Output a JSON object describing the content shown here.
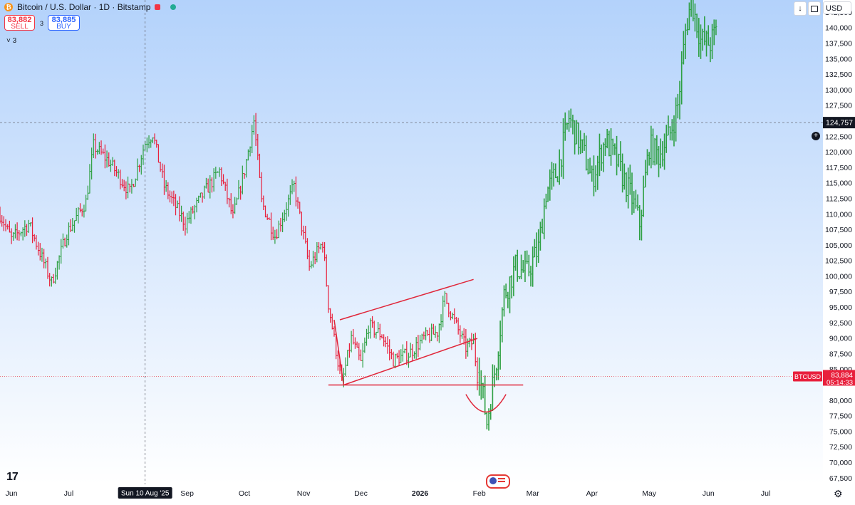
{
  "header": {
    "title": "Bitcoin / U.S. Dollar · 1D · Bitstamp",
    "coin_symbol": "₿",
    "sell_price": "83,882",
    "sell_label": "SELL",
    "buy_price": "83,885",
    "buy_label": "BUY",
    "spread": "3",
    "indicators_count": "3"
  },
  "top_right": {
    "currency": "USD",
    "arrow_glyph": "↓"
  },
  "crosshair": {
    "price_label": "124,757",
    "date_label": "Sun 10 Aug '25"
  },
  "last_price": {
    "symbol": "BTCUSD",
    "price": "83,884",
    "countdown": "05:14:33"
  },
  "logo": "17",
  "colors": {
    "up": "#2ea043",
    "down": "#e8203c",
    "pattern": "#e0263a",
    "bg_top": "#b3d2fb",
    "bg_bottom": "#ffffff"
  },
  "chart_data": {
    "type": "ohlc",
    "series": [
      {
        "name": "BTCUSD",
        "interval": "1D"
      }
    ],
    "yaxis": {
      "ticks": [
        67500,
        70000,
        72500,
        75000,
        77500,
        80000,
        82500,
        85000,
        87500,
        90000,
        92500,
        95000,
        97500,
        100000,
        102500,
        105000,
        107500,
        110000,
        112500,
        115000,
        117500,
        120000,
        122500,
        125000,
        127500,
        130000,
        132500,
        135000,
        137500,
        140000,
        142500
      ],
      "tick_labels": [
        "67,500",
        "70,000",
        "72,500",
        "75,000",
        "77,500",
        "80,000",
        "",
        "85,000",
        "87,500",
        "90,000",
        "92,500",
        "95,000",
        "97,500",
        "100,000",
        "102,500",
        "105,000",
        "107,500",
        "110,000",
        "112,500",
        "115,000",
        "117,500",
        "120,000",
        "122,500",
        "",
        "127,500",
        "130,000",
        "132,500",
        "135,000",
        "137,500",
        "140,000",
        "142,500"
      ],
      "range": [
        66500,
        144500
      ]
    },
    "xaxis": {
      "labels": [
        {
          "text": "Jun",
          "date": "2025-06-01"
        },
        {
          "text": "Jul",
          "date": "2025-07-01"
        },
        {
          "text": "Sep",
          "date": "2025-09-01"
        },
        {
          "text": "Oct",
          "date": "2025-10-01"
        },
        {
          "text": "Nov",
          "date": "2025-11-01"
        },
        {
          "text": "Dec",
          "date": "2025-12-01"
        },
        {
          "text": "2026",
          "date": "2026-01-01",
          "bold": true
        },
        {
          "text": "Feb",
          "date": "2026-02-01"
        },
        {
          "text": "Mar",
          "date": "2026-03-01"
        },
        {
          "text": "Apr",
          "date": "2026-04-01"
        },
        {
          "text": "May",
          "date": "2026-05-01"
        },
        {
          "text": "Jun",
          "date": "2026-06-01"
        },
        {
          "text": "Jul",
          "date": "2026-07-01"
        }
      ],
      "range": [
        "2025-05-26",
        "2026-07-31"
      ]
    },
    "price_path_actual": [
      [
        "2025-05-26",
        110000
      ],
      [
        "2025-06-01",
        106000
      ],
      [
        "2025-06-10",
        108500
      ],
      [
        "2025-06-22",
        99000
      ],
      [
        "2025-06-30",
        107000
      ],
      [
        "2025-07-10",
        112000
      ],
      [
        "2025-07-14",
        121000
      ],
      [
        "2025-07-22",
        118500
      ],
      [
        "2025-08-02",
        113500
      ],
      [
        "2025-08-10",
        121500
      ],
      [
        "2025-08-14",
        123000
      ],
      [
        "2025-08-20",
        114500
      ],
      [
        "2025-08-31",
        108500
      ],
      [
        "2025-09-10",
        113500
      ],
      [
        "2025-09-18",
        117000
      ],
      [
        "2025-09-25",
        109500
      ],
      [
        "2025-10-01",
        117000
      ],
      [
        "2025-10-06",
        125000
      ],
      [
        "2025-10-10",
        112000
      ],
      [
        "2025-10-17",
        106500
      ],
      [
        "2025-10-27",
        114500
      ],
      [
        "2025-11-04",
        101500
      ],
      [
        "2025-11-11",
        105500
      ],
      [
        "2025-11-14",
        95500
      ],
      [
        "2025-11-21",
        82500
      ],
      [
        "2025-11-26",
        90000
      ],
      [
        "2025-12-01",
        86000
      ],
      [
        "2025-12-05",
        92000
      ],
      [
        "2025-12-12",
        90500
      ],
      [
        "2025-12-18",
        86500
      ],
      [
        "2025-12-26",
        87500
      ],
      [
        "2026-01-03",
        90000
      ],
      [
        "2026-01-10",
        91000
      ],
      [
        "2026-01-14",
        96500
      ],
      [
        "2026-01-20",
        92000
      ],
      [
        "2026-01-25",
        88500
      ],
      [
        "2026-01-29",
        89500
      ],
      [
        "2026-01-31",
        83900
      ]
    ],
    "price_path_projected": [
      [
        "2026-02-01",
        84500
      ],
      [
        "2026-02-05",
        76500
      ],
      [
        "2026-02-10",
        86500
      ],
      [
        "2026-02-14",
        97000
      ],
      [
        "2026-02-20",
        101500
      ],
      [
        "2026-02-26",
        100500
      ],
      [
        "2026-03-04",
        104500
      ],
      [
        "2026-03-08",
        113500
      ],
      [
        "2026-03-14",
        117000
      ],
      [
        "2026-03-20",
        125500
      ],
      [
        "2026-03-27",
        120500
      ],
      [
        "2026-04-01",
        115500
      ],
      [
        "2026-04-08",
        122000
      ],
      [
        "2026-04-14",
        118500
      ],
      [
        "2026-04-22",
        112500
      ],
      [
        "2026-04-26",
        108500
      ],
      [
        "2026-05-01",
        121000
      ],
      [
        "2026-05-06",
        119500
      ],
      [
        "2026-05-12",
        123000
      ],
      [
        "2026-05-16",
        127500
      ],
      [
        "2026-05-20",
        139500
      ],
      [
        "2026-05-23",
        144500
      ],
      [
        "2026-05-28",
        138000
      ],
      [
        "2026-06-02",
        137500
      ],
      [
        "2026-06-05",
        139500
      ]
    ],
    "annotations": {
      "wedge_upper": [
        [
          "2025-11-20",
          93000
        ],
        [
          "2026-01-29",
          99500
        ]
      ],
      "wedge_lower": [
        [
          "2025-11-22",
          82500
        ],
        [
          "2026-01-31",
          90000
        ]
      ],
      "wedge_left_edge": [
        [
          "2025-11-17",
          93000
        ],
        [
          "2025-11-22",
          82500
        ]
      ],
      "support_line": {
        "price": 82500,
        "from": "2025-11-14",
        "to": "2026-02-24"
      },
      "bowl_curve": {
        "from": "2026-01-25",
        "to": "2026-02-15",
        "bottom": 78000
      },
      "crosshair_vertical": "2025-08-10",
      "crosshair_price": 124757,
      "last_price_line": 83884
    }
  }
}
